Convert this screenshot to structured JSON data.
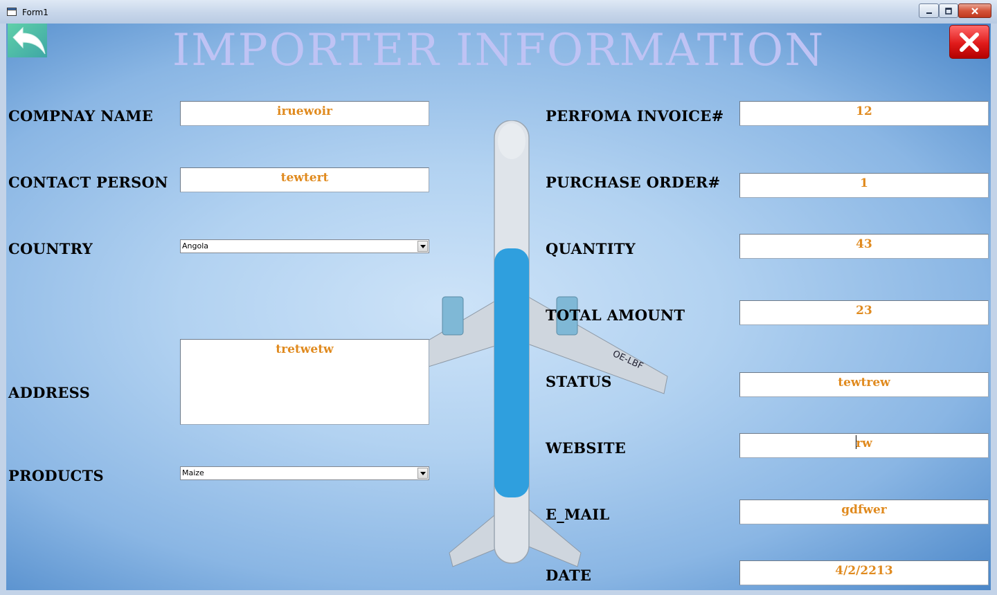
{
  "window": {
    "title": "Form1"
  },
  "header": {
    "title": "Importer Information"
  },
  "colors": {
    "value_text": "#e08a1e",
    "heading": "#bfc3f4",
    "background": "#9cc4ec"
  },
  "left": {
    "company_name": {
      "label": "COMPNAY NAME",
      "value": "iruewoir"
    },
    "contact_person": {
      "label": "CONTACT PERSON",
      "value": "tewtert"
    },
    "country": {
      "label": "COUNTRY",
      "selected": "Angola"
    },
    "address": {
      "label": "ADDRESS",
      "value": "tretwetw"
    },
    "products": {
      "label": "PRODUCTS",
      "selected": "Maize"
    }
  },
  "right": {
    "perfoma_invoice": {
      "label": "PERFOMA INVOICE#",
      "value": "12"
    },
    "purchase_order": {
      "label": "PURCHASE ORDER#",
      "value": "1"
    },
    "quantity": {
      "label": "QUANTITY",
      "value": "43"
    },
    "total_amount": {
      "label": "TOTAL AMOUNT",
      "value": "23"
    },
    "status": {
      "label": "STATUS",
      "value": "tewtrew"
    },
    "website": {
      "label": "WEBSITE",
      "value": "rw"
    },
    "email": {
      "label": "E_MAIL",
      "value": "gdfwer"
    },
    "date": {
      "label": "DATE",
      "value": "4/2/2213"
    }
  },
  "icons": {
    "back": "back-arrow-icon",
    "exit": "close-x-icon",
    "dropdown": "chevron-down-icon"
  }
}
